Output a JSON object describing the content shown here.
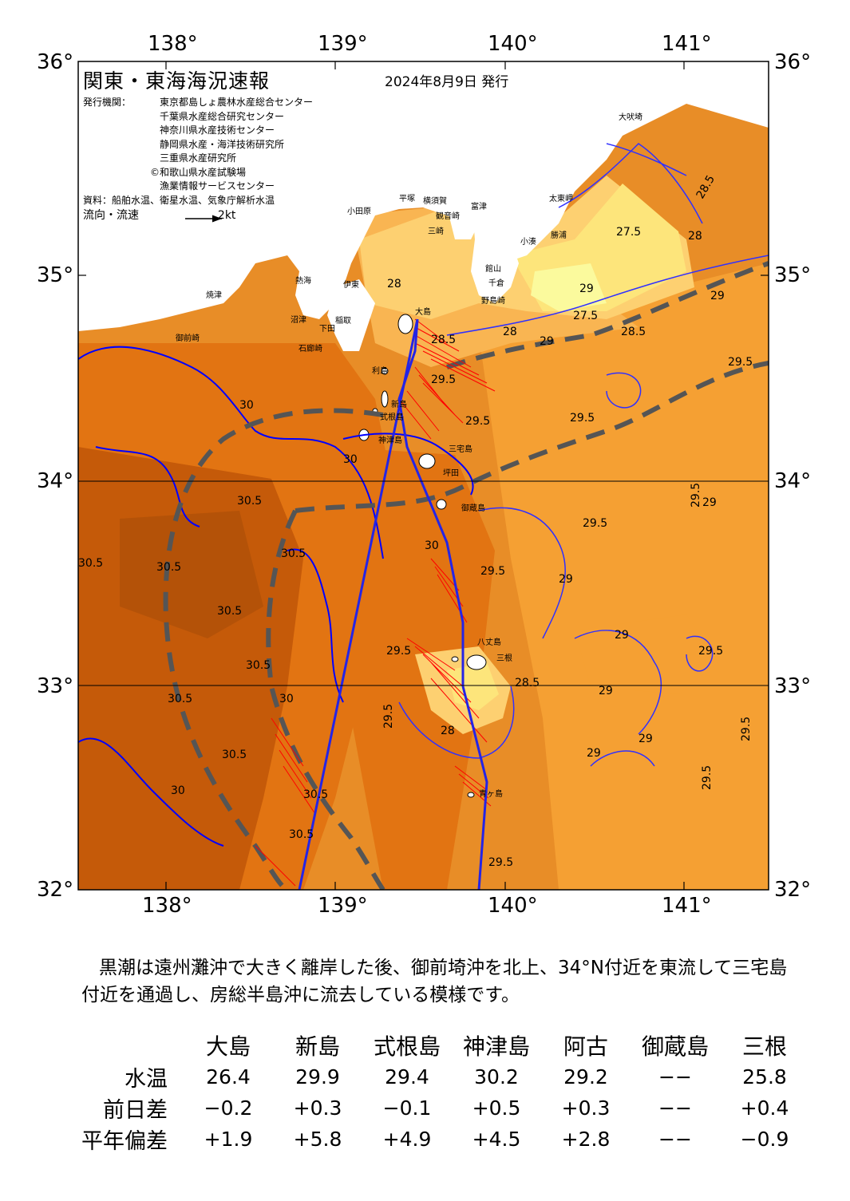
{
  "map": {
    "title": "関東・東海海況速報",
    "issued": "2024年8月9日 発行",
    "issuer_label": "発行機関：",
    "issuers": [
      "東京都島しょ農林水産総合センター",
      "千葉県水産総合研究センター",
      "神奈川県水産技術センター",
      "静岡県水産・海洋技術研究所",
      "三重県水産研究所",
      "©和歌山県水産試験場",
      "漁業情報サービスセンター"
    ],
    "source": "資料：船舶水温、衛星水温、気象庁解析水温",
    "current_legend": "流向・流速",
    "current_scale": "2kt",
    "lon_labels": [
      "138°",
      "139°",
      "140°",
      "141°"
    ],
    "lat_labels": [
      "36°",
      "35°",
      "34°",
      "33°",
      "32°"
    ],
    "place_names": [
      "大吠埼",
      "太東岬",
      "勝浦",
      "小湊",
      "館山",
      "千倉",
      "野島崎",
      "富津",
      "観音崎",
      "横須賀",
      "平塚",
      "小田原",
      "熱海",
      "三崎",
      "伊東",
      "稲取",
      "下田",
      "石廊崎",
      "沼津",
      "焼津",
      "御前崎",
      "大島",
      "利島",
      "新島",
      "式根島",
      "神津島",
      "三宅島",
      "御蔵島",
      "坪田",
      "八丈島",
      "三根",
      "青ヶ島"
    ],
    "isotherm_labels": [
      "27.5",
      "28",
      "28.5",
      "29",
      "29.5",
      "30",
      "30.5"
    ],
    "colors": {
      "t_27_0": "#fbfa9d",
      "t_27_5": "#fde57b",
      "t_28_0": "#fdd071",
      "t_28_5": "#f9b552",
      "t_29_0": "#f5a033",
      "t_29_5": "#e88d27",
      "t_30_0": "#e27412",
      "t_30_5": "#c55a09",
      "land": "#ffffff",
      "isotherm": "#0000ff",
      "kuroshio_axis": "#2424e6",
      "current_arrows": "#ff0000",
      "kuroshio_edge": "#555555"
    }
  },
  "summary": "黒潮は遠州灘沖で大きく離岸した後、御前埼沖を北上、34°N付近を東流して三宅島付近を通過し、房総半島沖に流去している模様です。",
  "table": {
    "stations": [
      "大島",
      "新島",
      "式根島",
      "神津島",
      "阿古",
      "御蔵島",
      "三根"
    ],
    "rows": [
      {
        "label": "水温",
        "values": [
          "26.4",
          "29.9",
          "29.4",
          "30.2",
          "29.2",
          "−−",
          "25.8"
        ]
      },
      {
        "label": "前日差",
        "values": [
          "−0.2",
          "+0.3",
          "−0.1",
          "+0.5",
          "+0.3",
          "−−",
          "+0.4"
        ]
      },
      {
        "label": "平年偏差",
        "values": [
          "+1.9",
          "+5.8",
          "+4.9",
          "+4.5",
          "+2.8",
          "−−",
          "−0.9"
        ]
      }
    ]
  }
}
